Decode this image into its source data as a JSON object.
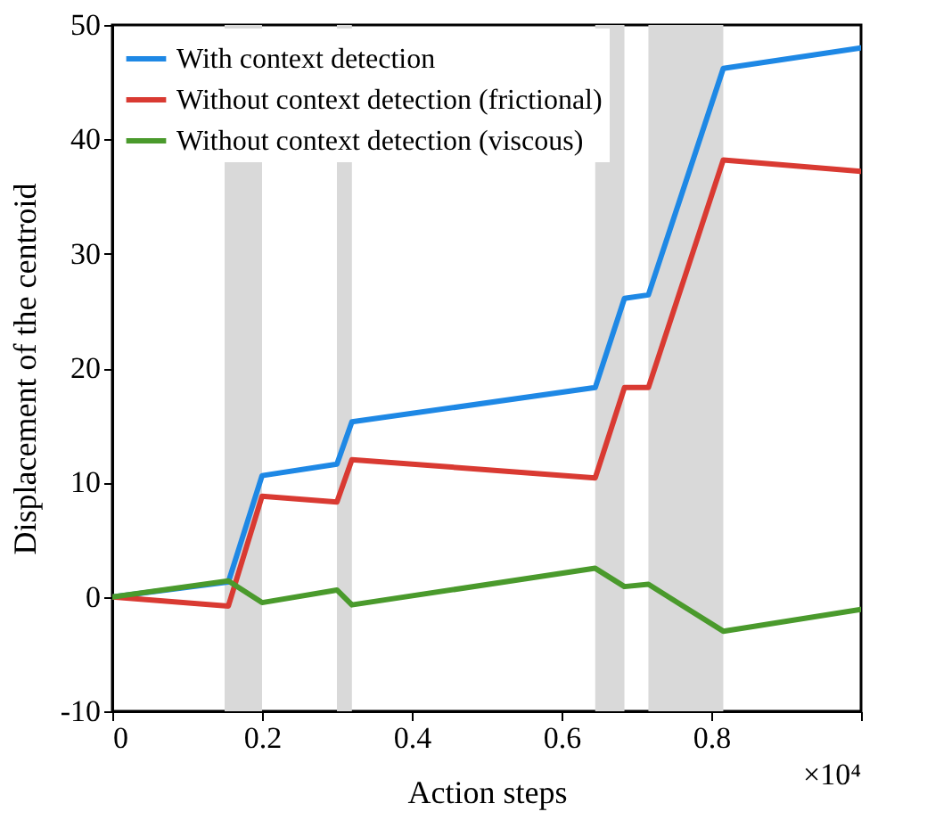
{
  "chart_data": {
    "type": "line",
    "xlabel": "Action steps",
    "ylabel": "Displacement of the centroid",
    "annotations": [
      "×10⁴"
    ],
    "xlim": [
      0,
      1
    ],
    "xticks": [
      0,
      0.2,
      0.4,
      0.6,
      0.8,
      {
        "value": 1,
        "label": null
      }
    ],
    "ylim": [
      -10,
      50
    ],
    "yticks": [
      -10,
      0,
      10,
      20,
      30,
      40,
      50
    ],
    "grid": false,
    "legend": "top left",
    "line_style": "solid",
    "marker": "none",
    "bands": [
      {
        "axis": "x",
        "from": 0.15,
        "to": 0.2,
        "color": "#d9d9d9"
      },
      {
        "axis": "x",
        "from": 0.3,
        "to": 0.32,
        "color": "#d9d9d9"
      },
      {
        "axis": "x",
        "from": 0.645,
        "to": 0.684,
        "color": "#d9d9d9"
      },
      {
        "axis": "x",
        "from": 0.716,
        "to": 0.816,
        "color": "#d9d9d9"
      }
    ],
    "x": [
      0,
      0.155,
      0.2,
      0.3,
      0.32,
      0.645,
      0.684,
      0.716,
      0.816,
      1
    ],
    "series": [
      {
        "name": "With context detection",
        "color": "#1e88e5",
        "values": [
          0,
          1.3,
          10.6,
          11.6,
          15.3,
          18.3,
          26.1,
          26.4,
          46.2,
          48
        ]
      },
      {
        "name": "Without context detection (frictional)",
        "color": "#d93a32",
        "values": [
          0,
          -0.8,
          8.8,
          8.3,
          12,
          10.4,
          18.3,
          18.3,
          38.2,
          37.2
        ]
      },
      {
        "name": "Without context detection (viscous)",
        "color": "#4a9a2c",
        "values": [
          0,
          1.4,
          -0.5,
          0.6,
          -0.7,
          2.5,
          0.9,
          1.1,
          -3,
          -1.1
        ]
      }
    ]
  }
}
